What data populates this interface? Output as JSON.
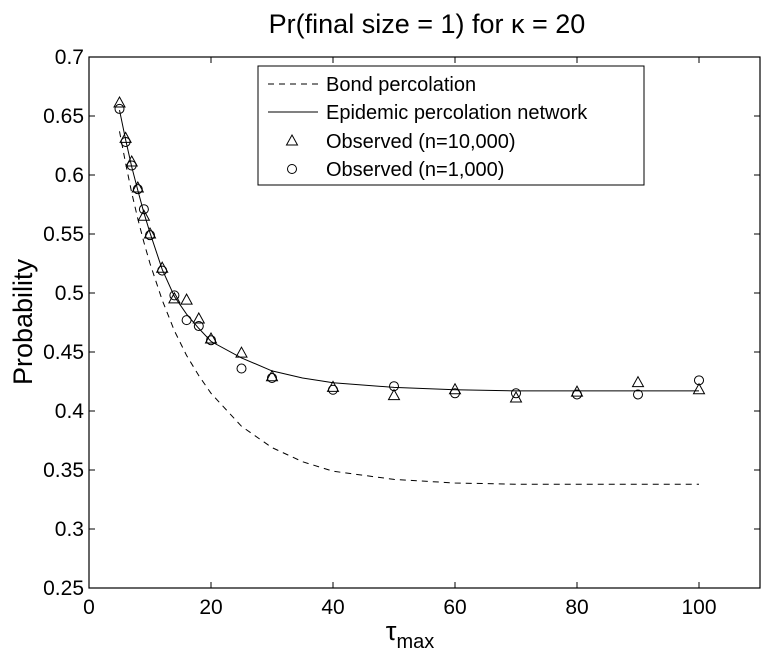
{
  "chart_data": {
    "type": "line",
    "title": "Pr(final size = 1) for κ = 20",
    "xlabel": "τ",
    "xlabel_subscript": "max",
    "ylabel": "Probability",
    "xlim": [
      0,
      110
    ],
    "ylim": [
      0.25,
      0.7
    ],
    "xticks": [
      0,
      20,
      40,
      60,
      80,
      100
    ],
    "yticks": [
      0.25,
      0.3,
      0.35,
      0.4,
      0.45,
      0.5,
      0.55,
      0.6,
      0.65,
      0.7
    ],
    "xtick_labels": [
      "0",
      "20",
      "40",
      "60",
      "80",
      "100"
    ],
    "ytick_labels": [
      "0.25",
      "0.3",
      "0.35",
      "0.4",
      "0.45",
      "0.5",
      "0.55",
      "0.6",
      "0.65",
      "0.7"
    ],
    "grid": false,
    "legend_position": "top-right",
    "series": [
      {
        "name": "Bond percolation",
        "style": "dashed-line",
        "x": [
          5,
          6,
          7,
          8,
          9,
          10,
          12,
          14,
          16,
          18,
          20,
          25,
          30,
          35,
          40,
          50,
          60,
          70,
          80,
          90,
          100
        ],
        "y": [
          0.637,
          0.61,
          0.585,
          0.563,
          0.543,
          0.525,
          0.494,
          0.468,
          0.447,
          0.43,
          0.415,
          0.387,
          0.369,
          0.357,
          0.349,
          0.342,
          0.339,
          0.338,
          0.338,
          0.338,
          0.338
        ]
      },
      {
        "name": "Epidemic percolation network",
        "style": "solid-line",
        "x": [
          5,
          6,
          7,
          8,
          9,
          10,
          12,
          14,
          16,
          18,
          20,
          25,
          30,
          35,
          40,
          50,
          60,
          70,
          80,
          90,
          100
        ],
        "y": [
          0.655,
          0.63,
          0.607,
          0.587,
          0.568,
          0.551,
          0.52,
          0.497,
          0.482,
          0.47,
          0.459,
          0.445,
          0.434,
          0.428,
          0.424,
          0.42,
          0.418,
          0.417,
          0.417,
          0.417,
          0.417
        ]
      },
      {
        "name": "Observed (n=10,000)",
        "style": "triangle-marker",
        "x": [
          5,
          6,
          7,
          8,
          9,
          10,
          12,
          14,
          16,
          18,
          20,
          25,
          30,
          40,
          50,
          60,
          70,
          80,
          90,
          100
        ],
        "y": [
          0.661,
          0.631,
          0.611,
          0.589,
          0.565,
          0.55,
          0.521,
          0.495,
          0.494,
          0.478,
          0.461,
          0.449,
          0.429,
          0.42,
          0.413,
          0.418,
          0.411,
          0.416,
          0.424,
          0.418
        ]
      },
      {
        "name": "Observed (n=1,000)",
        "style": "circle-marker",
        "x": [
          5,
          6,
          7,
          8,
          9,
          10,
          12,
          14,
          16,
          18,
          20,
          25,
          30,
          40,
          50,
          60,
          70,
          80,
          90,
          100
        ],
        "y": [
          0.656,
          0.628,
          0.608,
          0.588,
          0.571,
          0.549,
          0.519,
          0.498,
          0.477,
          0.472,
          0.46,
          0.436,
          0.428,
          0.418,
          0.421,
          0.415,
          0.415,
          0.414,
          0.414,
          0.426
        ]
      }
    ]
  }
}
